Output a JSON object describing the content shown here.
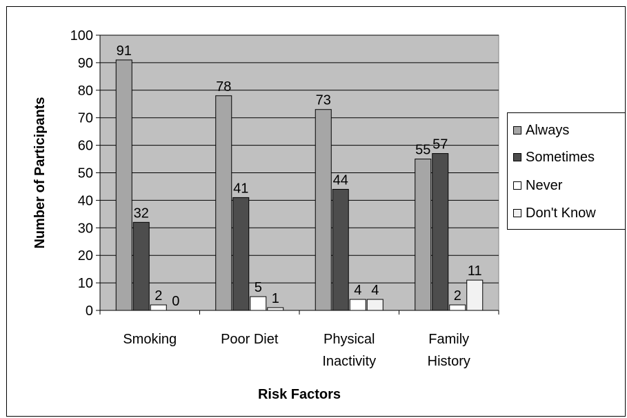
{
  "chart_data": {
    "type": "bar",
    "categories": [
      [
        "Smoking"
      ],
      [
        "Poor Diet"
      ],
      [
        "Physical",
        "Inactivity"
      ],
      [
        "Family",
        "History"
      ]
    ],
    "series": [
      {
        "name": "Always",
        "color": "#a6a6a6",
        "values": [
          91,
          78,
          73,
          55
        ]
      },
      {
        "name": "Sometimes",
        "color": "#4d4d4d",
        "values": [
          32,
          41,
          44,
          57
        ]
      },
      {
        "name": "Never",
        "color": "#ffffff",
        "values": [
          2,
          5,
          4,
          2
        ]
      },
      {
        "name": "Don't Know",
        "color": "#f2f2f2",
        "values": [
          0,
          1,
          4,
          11
        ]
      }
    ],
    "xlabel": "Risk Factors",
    "ylabel": "Number of Participants",
    "ylim": [
      0,
      100
    ],
    "yticks": [
      0,
      10,
      20,
      30,
      40,
      50,
      60,
      70,
      80,
      90,
      100
    ],
    "grid": true,
    "plot_background": "#c0c0c0",
    "legend_position": "right"
  }
}
